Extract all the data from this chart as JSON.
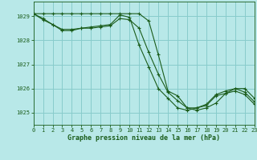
{
  "title": "Graphe pression niveau de la mer (hPa)",
  "bg_color": "#b8e8e8",
  "grid_color": "#88cccc",
  "line_color": "#1a5c1a",
  "xlim": [
    0,
    23
  ],
  "ylim": [
    1024.5,
    1029.6
  ],
  "yticks": [
    1025,
    1026,
    1027,
    1028,
    1029
  ],
  "xticks": [
    0,
    1,
    2,
    3,
    4,
    5,
    6,
    7,
    8,
    9,
    10,
    11,
    12,
    13,
    14,
    15,
    16,
    17,
    18,
    19,
    20,
    21,
    22,
    23
  ],
  "series1_x": [
    0,
    1,
    2,
    3,
    4,
    5,
    6,
    7,
    8,
    9,
    10,
    11,
    12,
    13,
    14,
    15,
    16,
    17,
    18,
    19,
    20,
    21,
    22,
    23
  ],
  "series1_y": [
    1029.1,
    1029.1,
    1029.1,
    1029.1,
    1029.1,
    1029.1,
    1029.1,
    1029.1,
    1029.1,
    1029.1,
    1029.1,
    1029.1,
    1028.8,
    1027.4,
    1025.9,
    1025.7,
    1025.2,
    1025.1,
    1025.2,
    1025.4,
    1025.8,
    1026.0,
    1026.0,
    1025.6
  ],
  "series2_x": [
    0,
    1,
    2,
    3,
    4,
    5,
    6,
    7,
    8,
    9,
    10,
    11,
    12,
    13,
    14,
    15,
    16,
    17,
    18,
    19,
    20,
    21,
    22,
    23
  ],
  "series2_y": [
    1029.1,
    1028.85,
    1028.65,
    1028.45,
    1028.45,
    1028.5,
    1028.5,
    1028.55,
    1028.6,
    1028.9,
    1028.85,
    1028.5,
    1027.5,
    1026.6,
    1025.85,
    1025.5,
    1025.2,
    1025.2,
    1025.35,
    1025.75,
    1025.9,
    1026.0,
    1025.85,
    1025.45
  ],
  "series3_x": [
    0,
    1,
    2,
    3,
    4,
    5,
    6,
    7,
    8,
    9,
    10,
    11,
    12,
    13,
    14,
    15,
    16,
    17,
    18,
    19,
    20,
    21,
    22,
    23
  ],
  "series3_y": [
    1029.1,
    1028.9,
    1028.65,
    1028.4,
    1028.4,
    1028.5,
    1028.55,
    1028.6,
    1028.65,
    1029.05,
    1028.95,
    1027.8,
    1026.9,
    1026.0,
    1025.6,
    1025.2,
    1025.1,
    1025.2,
    1025.3,
    1025.7,
    1025.8,
    1025.9,
    1025.75,
    1025.35
  ]
}
